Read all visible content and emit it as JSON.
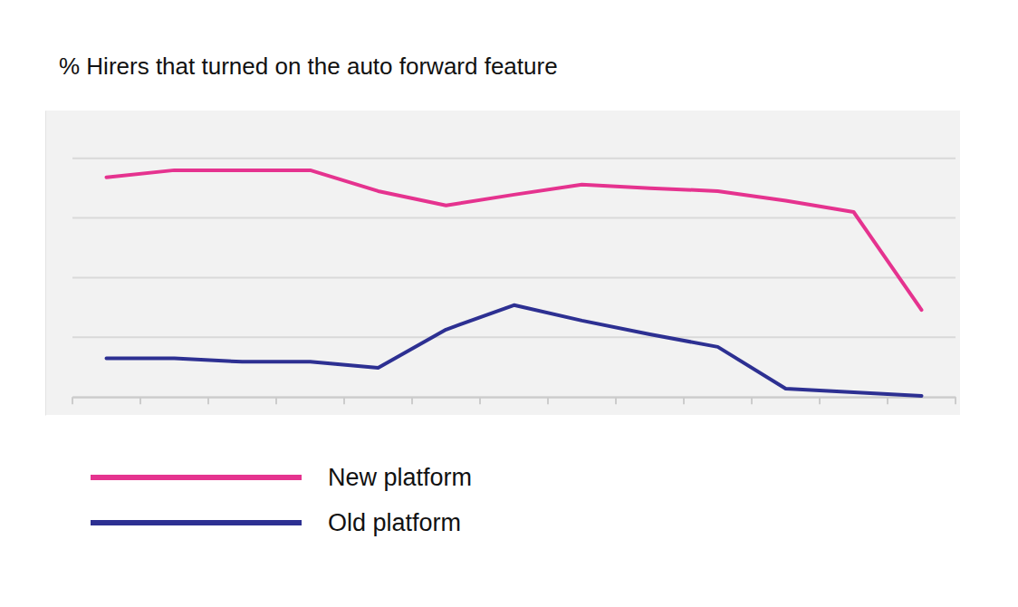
{
  "chart_data": {
    "type": "line",
    "title": "% Hirers that turned on the auto forward feature",
    "categories": [
      null,
      null,
      null,
      null,
      null,
      null,
      null,
      null,
      null,
      null,
      null,
      null,
      null
    ],
    "series": [
      {
        "name": "New platform",
        "color": "#e5338f",
        "values": [
          36.8,
          38.0,
          38.0,
          38.0,
          34.5,
          32.1,
          33.9,
          35.6,
          35.0,
          34.5,
          32.9,
          31.0,
          14.6
        ]
      },
      {
        "name": "Old platform",
        "color": "#2d3092",
        "values": [
          6.5,
          6.5,
          5.9,
          5.9,
          4.9,
          11.3,
          15.4,
          12.8,
          10.5,
          8.4,
          1.4,
          0.8,
          0.2
        ]
      }
    ],
    "ylim": [
      -3,
      48
    ],
    "yticks": [
      0,
      10,
      20,
      30,
      40
    ],
    "grid": true,
    "tick_labels": false,
    "legend": "bottom"
  }
}
